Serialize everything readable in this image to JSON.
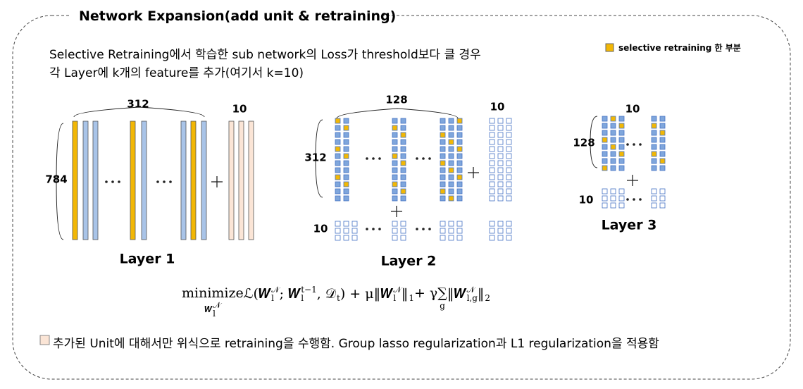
{
  "title": "Network Expansion(add unit & retraining)",
  "description": [
    "Selective Retraining에서 학습한 sub network의 Loss가 threshold보다 클 경우",
    "각 Layer에 k개의 feature를 추가(여기서 k=10)"
  ],
  "legend": "selective retraining 한 부분",
  "layers": [
    {
      "name": "Layer 1",
      "top": "312",
      "new": "10",
      "side": "784"
    },
    {
      "name": "Layer 2",
      "top": "128",
      "new": "10",
      "side": "312",
      "bottom": "10"
    },
    {
      "name": "Layer 3",
      "new": "10",
      "side": "128",
      "bottom": "10"
    }
  ],
  "formula": [
    {
      "text": "minimize",
      "under": {
        "text": "𝑾",
        "sub": "l",
        "sup": "𝒩"
      }
    },
    {
      "text": " ℒ(𝑾",
      "sub": "l",
      "sup": "𝒩"
    },
    {
      "text": " ; 𝑾",
      "sub": "l",
      "sup": "t−1"
    },
    {
      "text": ", 𝒟",
      "sub": "t"
    },
    {
      "text": ") + μ‖𝑾",
      "sub": "l",
      "sup": "𝒩"
    },
    {
      "text": "‖",
      "sub": "1"
    },
    {
      "text": " + γ"
    },
    {
      "text": "∑",
      "under": {
        "text": "g"
      }
    },
    {
      "text": " ‖𝑾",
      "sub": "l,g",
      "sup": "𝒩"
    },
    {
      "text": "‖",
      "sub": "2"
    }
  ],
  "footer": "추가된 Unit에 대해서만 위식으로 retraining을 수행함. Group lasso regularization과 L1 regularization을 적용함"
}
